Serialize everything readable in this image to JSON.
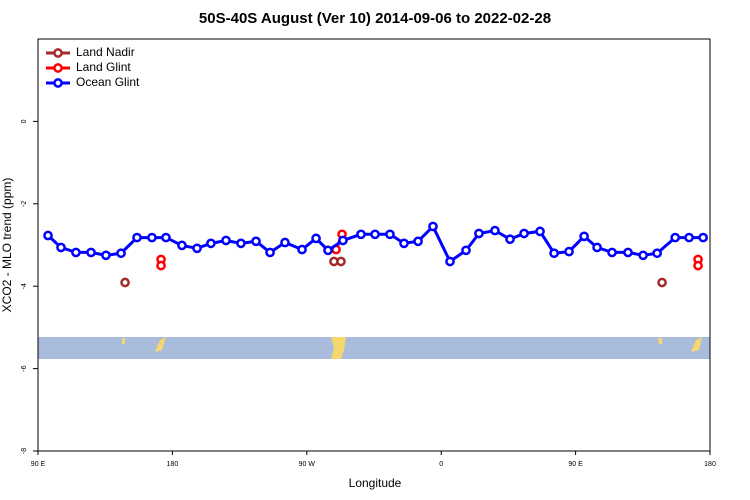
{
  "chart_data": {
    "type": "line",
    "title": "50S-40S August (Ver 10)   2014-09-06 to 2022-02-28",
    "x_label": "Longitude",
    "y_label": "XCO2 - MLO trend (ppm)",
    "xlim": [
      90,
      540
    ],
    "ylim": [
      -8,
      2
    ],
    "xticks": [
      {
        "value": 90,
        "label": "90 E"
      },
      180,
      {
        "value": 270,
        "label": "90 W"
      },
      {
        "value": 360,
        "label": "0"
      },
      {
        "value": 450,
        "label": "90 E"
      },
      {
        "value": 540,
        "label": "180"
      }
    ],
    "yticks": [
      0,
      -2,
      -4,
      -6,
      -8
    ],
    "legend": "top-left",
    "series": [
      {
        "name": "Land Nadir",
        "color": "#a52a2a",
        "x": [
          148.3,
          null,
          288.2,
          292.9,
          null,
          507.9
        ],
        "values": [
          -3.91,
          null,
          -3.4,
          -3.4,
          null,
          -3.91
        ]
      },
      {
        "name": "Land Glint",
        "color": "#ff0000",
        "x": [
          172.4,
          null,
          172.4,
          null,
          289.6,
          293.6,
          null,
          532,
          null,
          532
        ],
        "values": [
          -3.35,
          null,
          -3.5,
          null,
          -3.11,
          -2.74,
          null,
          -3.35,
          null,
          -3.5
        ]
      },
      {
        "name": "Ocean Glint",
        "color": "#0000ff",
        "x": [
          96.7,
          105.4,
          115.4,
          125.5,
          135.5,
          145.6,
          156.3,
          166.3,
          175.7,
          186.4,
          196.5,
          205.8,
          215.9,
          225.9,
          236.0,
          245.4,
          255.4,
          266.8,
          276.2,
          284.2,
          294.2,
          306.3,
          315.7,
          325.7,
          335.1,
          344.5,
          354.5,
          365.9,
          376.6,
          385.3,
          396.0,
          406.1,
          415.5,
          426.2,
          435.6,
          445.6,
          455.7,
          464.4,
          474.4,
          485.1,
          495.2,
          504.6,
          516.7,
          526.0,
          535.4
        ],
        "values": [
          -2.77,
          -3.06,
          -3.18,
          -3.18,
          -3.25,
          -3.2,
          -2.82,
          -2.82,
          -2.82,
          -3.01,
          -3.08,
          -2.96,
          -2.89,
          -2.96,
          -2.91,
          -3.18,
          -2.94,
          -3.11,
          -2.84,
          -3.13,
          -2.89,
          -2.74,
          -2.74,
          -2.74,
          -2.96,
          -2.91,
          -2.55,
          -3.4,
          -3.13,
          -2.72,
          -2.65,
          -2.86,
          -2.72,
          -2.67,
          -3.2,
          -3.16,
          -2.79,
          -3.06,
          -3.18,
          -3.18,
          -3.25,
          -3.2,
          -2.82,
          -2.82,
          -2.82
        ]
      }
    ]
  }
}
